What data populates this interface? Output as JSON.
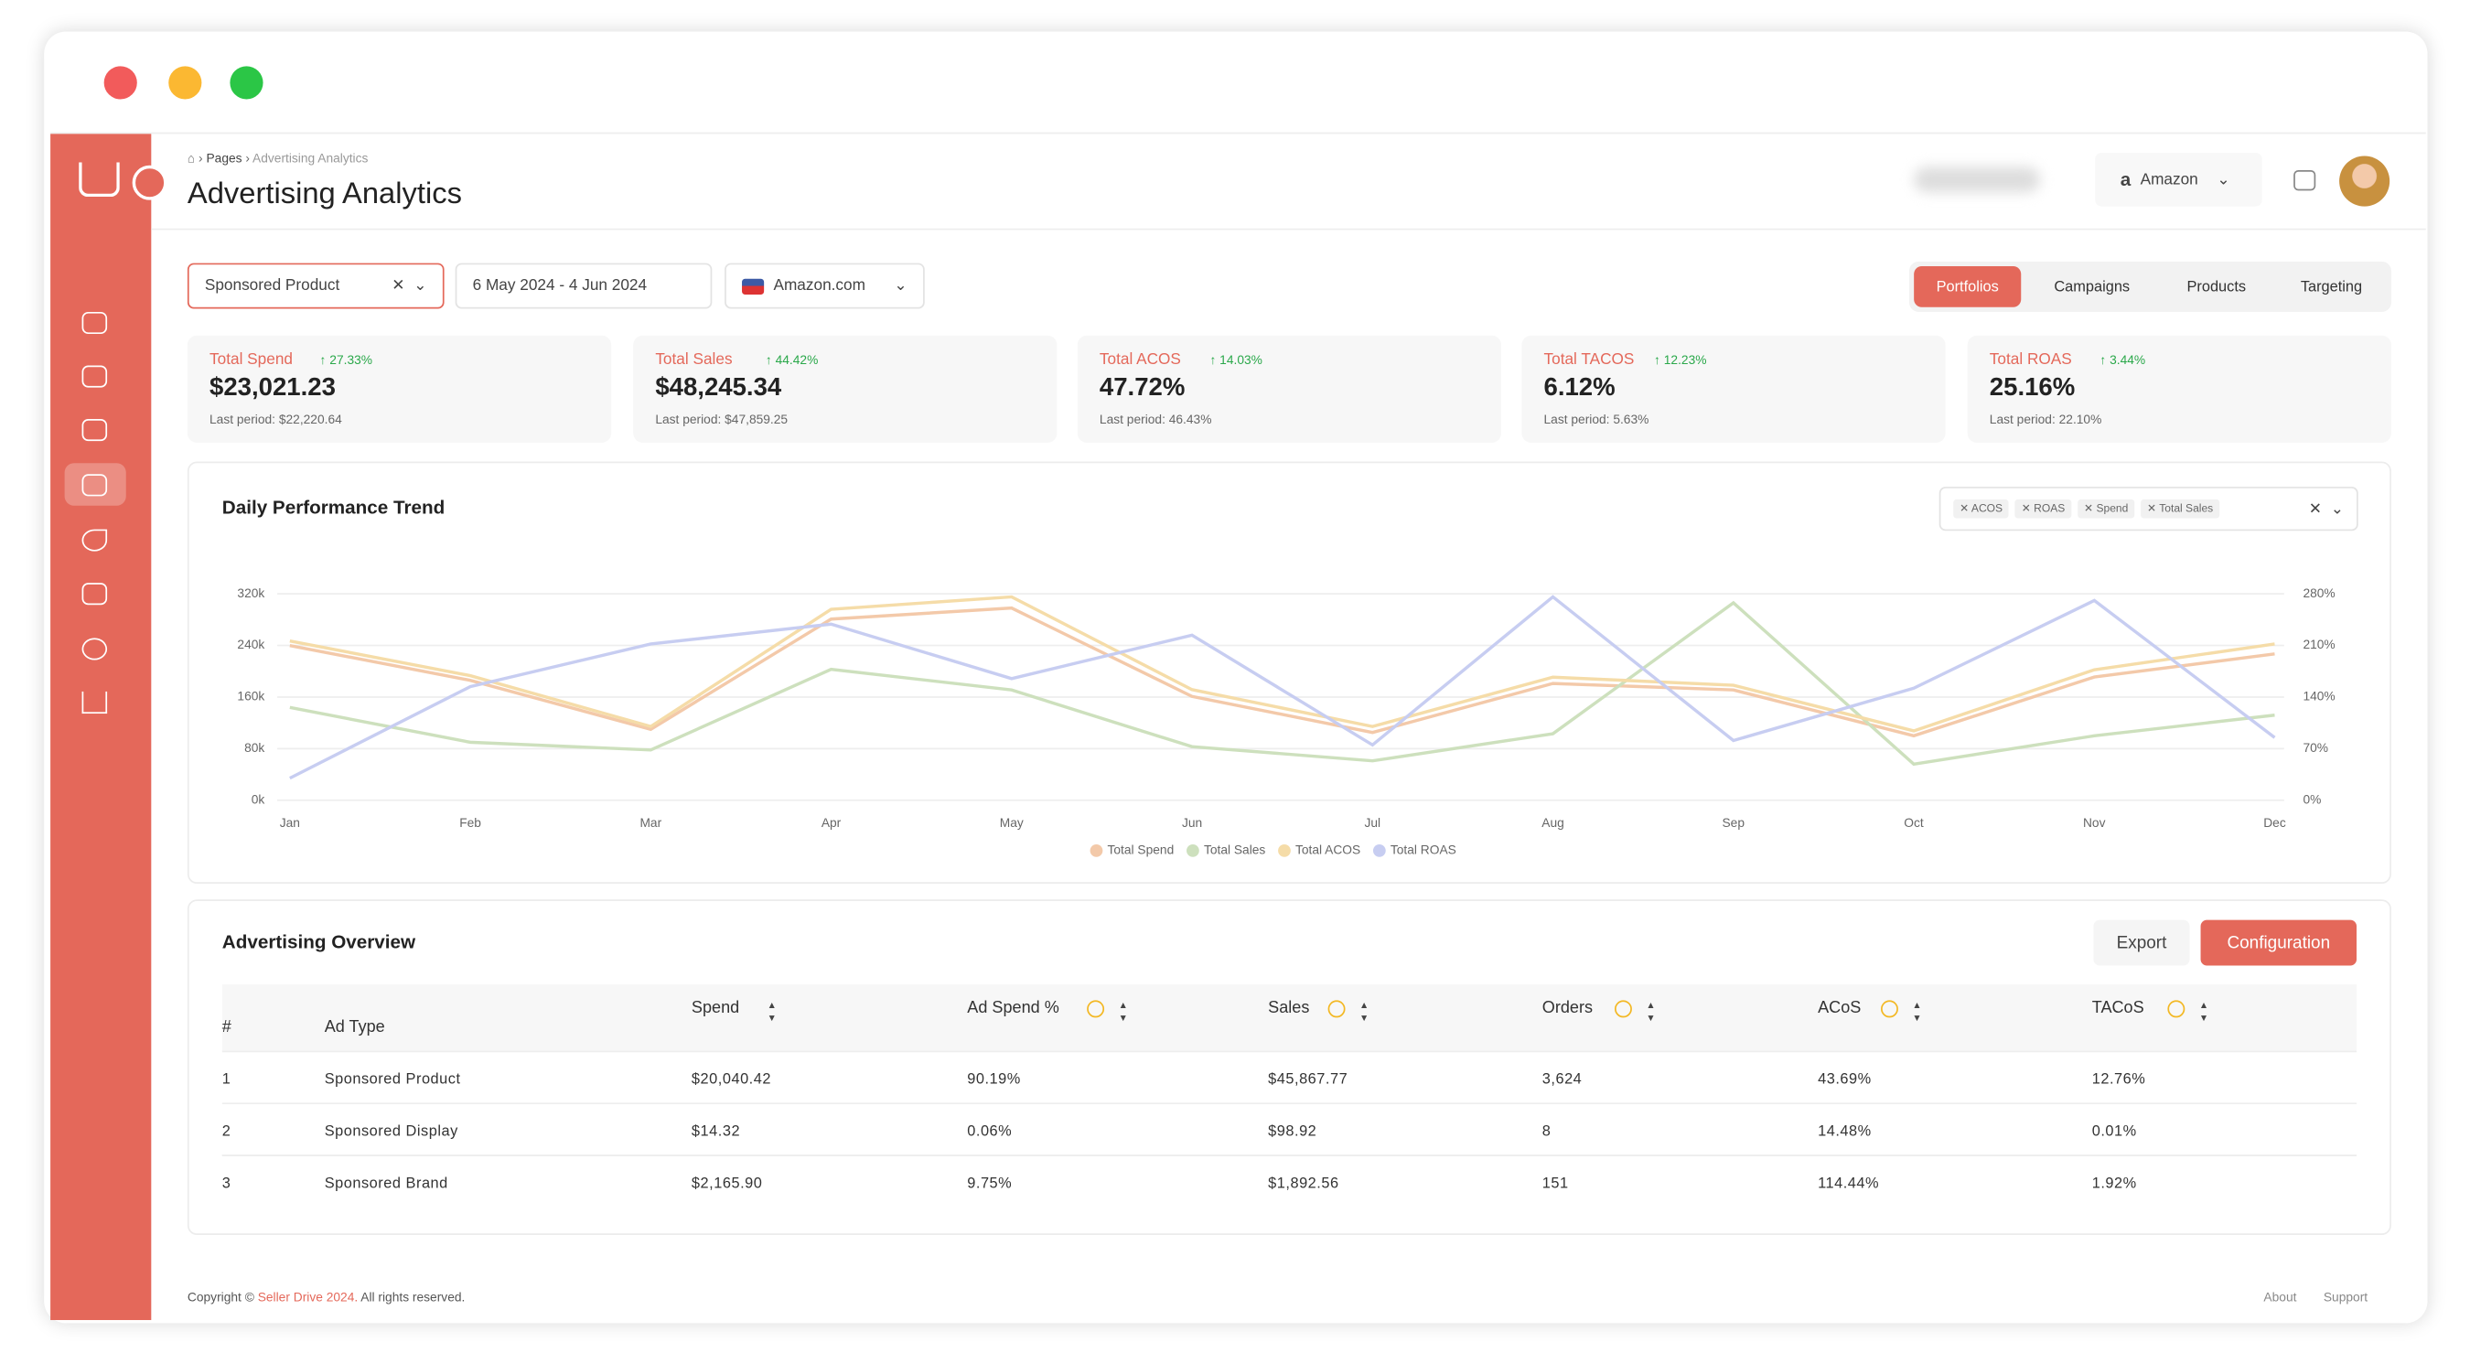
{
  "breadcrumb": [
    "Pages",
    "Advertising Analytics"
  ],
  "page_title": "Advertising Analytics",
  "header": {
    "marketplace": "Amazon"
  },
  "filters": {
    "ad_type": "Sponsored Product",
    "date_range": "6 May 2024 - 4 Jun 2024",
    "store": "Amazon.com"
  },
  "tabs": [
    "Portfolios",
    "Campaigns",
    "Products",
    "Targeting"
  ],
  "kpis": [
    {
      "label": "Total Spend",
      "change": "27.33%",
      "value": "$23,021.23",
      "previous": "Last period: $22,220.64"
    },
    {
      "label": "Total Sales",
      "change": "44.42%",
      "value": "$48,245.34",
      "previous": "Last period: $47,859.25"
    },
    {
      "label": "Total ACOS",
      "change": "14.03%",
      "value": "47.72%",
      "previous": "Last period: 46.43%"
    },
    {
      "label": "Total TACOS",
      "change": "12.23%",
      "value": "6.12%",
      "previous": "Last period: 5.63%"
    },
    {
      "label": "Total ROAS",
      "change": "3.44%",
      "value": "25.16%",
      "previous": "Last period: 22.10%"
    }
  ],
  "chart_data": {
    "type": "line",
    "title": "Daily Performance Trend",
    "filter_tags": [
      "ACOS",
      "ROAS",
      "Spend",
      "Total Sales"
    ],
    "categories": [
      "Jan",
      "Feb",
      "Mar",
      "Apr",
      "May",
      "Jun",
      "Jul",
      "Aug",
      "Sep",
      "Oct",
      "Nov",
      "Dec"
    ],
    "series": [
      {
        "name": "Total Spend",
        "color": "#f3c9a9",
        "values": [
          240000,
          186000,
          110000,
          281000,
          298000,
          161000,
          105000,
          181000,
          171000,
          100000,
          191000,
          227000
        ]
      },
      {
        "name": "Total Sales",
        "color": "#cde0bd",
        "values": [
          144000,
          90000,
          78000,
          203000,
          171000,
          83000,
          61000,
          103000,
          306000,
          56000,
          100000,
          132000
        ]
      },
      {
        "name": "Total ACOS",
        "color": "#f5dca8",
        "axis": "y2",
        "values": [
          216,
          169,
          100,
          259,
          276,
          150,
          100,
          167,
          156,
          94,
          177,
          212
        ]
      },
      {
        "name": "Total ROAS",
        "color": "#c7cdf1",
        "axis": "y2",
        "values": [
          30,
          154,
          212,
          239,
          165,
          224,
          75,
          276,
          81,
          152,
          271,
          85
        ]
      }
    ],
    "ylim": [
      0,
      320000
    ],
    "yticks": [
      {
        "value": 0,
        "label": "0k"
      },
      {
        "value": 80000,
        "label": "80k"
      },
      {
        "value": 160000,
        "label": "160k"
      },
      {
        "value": 240000,
        "label": "240k"
      },
      {
        "value": 320000,
        "label": "320k"
      }
    ],
    "y2lim": [
      0,
      280
    ],
    "y2ticks": [
      {
        "value": 0,
        "label": "0%"
      },
      {
        "value": 70,
        "label": "70%"
      },
      {
        "value": 140,
        "label": "140%"
      },
      {
        "value": 210,
        "label": "210%"
      },
      {
        "value": 280,
        "label": "280%"
      }
    ],
    "grid": true
  },
  "table": {
    "title": "Advertising Overview",
    "buttons": [
      "Export",
      "Configuration"
    ],
    "columns": [
      "#",
      "Ad Type",
      "Spend",
      "Ad Spend %",
      "Sales",
      "Orders",
      "ACoS",
      "TACoS"
    ],
    "rows": [
      [
        "1",
        "Sponsored Product",
        "$20,040.42",
        "90.19%",
        "$45,867.77",
        "3,624",
        "43.69%",
        "12.76%"
      ],
      [
        "2",
        "Sponsored Display",
        "$14.32",
        "0.06%",
        "$98.92",
        "8",
        "14.48%",
        "0.01%"
      ],
      [
        "3",
        "Sponsored Brand",
        "$2,165.90",
        "9.75%",
        "$1,892.56",
        "151",
        "114.44%",
        "1.92%"
      ]
    ]
  },
  "footer": {
    "copyright": "Copyright ©",
    "brand": "Seller Drive 2024.",
    "rights": "All rights reserved.",
    "links": [
      "About",
      "Support"
    ]
  }
}
